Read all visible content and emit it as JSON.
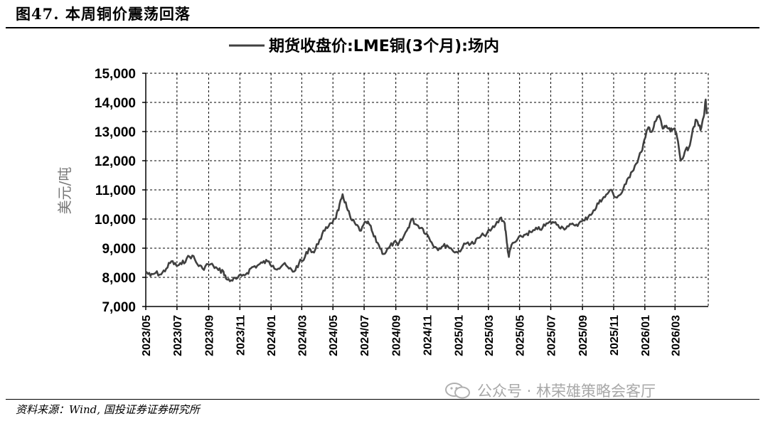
{
  "figure": {
    "title": "图47. 本周铜价震荡回落",
    "source": "资料来源：Wind, 国投证券证券研究所",
    "watermark": "公众号 · 林荣雄策略会客厅"
  },
  "chart_data": {
    "type": "line",
    "title": "",
    "xlabel": "",
    "ylabel": "美元/吨",
    "ylim": [
      7000,
      15000
    ],
    "yticks": [
      "7,000",
      "8,000",
      "9,000",
      "10,000",
      "11,000",
      "12,000",
      "13,000",
      "14,000",
      "15,000"
    ],
    "xticks": [
      "2023/05",
      "2023/07",
      "2023/09",
      "2023/11",
      "2024/01",
      "2024/03",
      "2024/05",
      "2024/07",
      "2024/09",
      "2024/11",
      "2025/01",
      "2025/03",
      "2025/05",
      "2025/07",
      "2025/09",
      "2025/11",
      "2026/01",
      "2026/03"
    ],
    "xlim": [
      "2023-05-01",
      "2026-05-05"
    ],
    "grid": true,
    "legend": "top-center",
    "line_color": "#404040",
    "series": [
      {
        "name": "期货收盘价:LME铜(3个月):场内",
        "points": [
          [
            "2023-05-01",
            8200
          ],
          [
            "2023-05-10",
            8050
          ],
          [
            "2023-05-20",
            8150
          ],
          [
            "2023-05-31",
            8100
          ],
          [
            "2023-06-10",
            8300
          ],
          [
            "2023-06-20",
            8550
          ],
          [
            "2023-06-30",
            8400
          ],
          [
            "2023-07-10",
            8450
          ],
          [
            "2023-07-20",
            8650
          ],
          [
            "2023-07-31",
            8750
          ],
          [
            "2023-08-10",
            8450
          ],
          [
            "2023-08-20",
            8300
          ],
          [
            "2023-08-31",
            8450
          ],
          [
            "2023-09-10",
            8400
          ],
          [
            "2023-09-20",
            8250
          ],
          [
            "2023-09-30",
            8200
          ],
          [
            "2023-10-05",
            7950
          ],
          [
            "2023-10-15",
            7900
          ],
          [
            "2023-10-25",
            7950
          ],
          [
            "2023-11-05",
            8050
          ],
          [
            "2023-11-15",
            8150
          ],
          [
            "2023-11-25",
            8350
          ],
          [
            "2023-12-05",
            8400
          ],
          [
            "2023-12-15",
            8500
          ],
          [
            "2023-12-25",
            8550
          ],
          [
            "2024-01-05",
            8400
          ],
          [
            "2024-01-15",
            8300
          ],
          [
            "2024-01-25",
            8450
          ],
          [
            "2024-02-05",
            8300
          ],
          [
            "2024-02-15",
            8200
          ],
          [
            "2024-02-25",
            8500
          ],
          [
            "2024-03-05",
            8600
          ],
          [
            "2024-03-15",
            9000
          ],
          [
            "2024-03-25",
            8850
          ],
          [
            "2024-04-05",
            9300
          ],
          [
            "2024-04-15",
            9600
          ],
          [
            "2024-04-25",
            9850
          ],
          [
            "2024-05-05",
            10000
          ],
          [
            "2024-05-12",
            10300
          ],
          [
            "2024-05-20",
            10850
          ],
          [
            "2024-05-28",
            10400
          ],
          [
            "2024-06-05",
            10000
          ],
          [
            "2024-06-15",
            9800
          ],
          [
            "2024-06-25",
            9600
          ],
          [
            "2024-07-05",
            9900
          ],
          [
            "2024-07-12",
            9800
          ],
          [
            "2024-07-20",
            9400
          ],
          [
            "2024-07-30",
            9100
          ],
          [
            "2024-08-08",
            8800
          ],
          [
            "2024-08-18",
            9000
          ],
          [
            "2024-08-28",
            9200
          ],
          [
            "2024-09-05",
            9100
          ],
          [
            "2024-09-15",
            9350
          ],
          [
            "2024-09-25",
            9700
          ],
          [
            "2024-10-02",
            10000
          ],
          [
            "2024-10-12",
            9800
          ],
          [
            "2024-10-22",
            9700
          ],
          [
            "2024-10-31",
            9500
          ],
          [
            "2024-11-10",
            9200
          ],
          [
            "2024-11-20",
            9000
          ],
          [
            "2024-11-30",
            9050
          ],
          [
            "2024-12-10",
            9100
          ],
          [
            "2024-12-20",
            8950
          ],
          [
            "2024-12-31",
            8850
          ],
          [
            "2025-01-10",
            9050
          ],
          [
            "2025-01-20",
            9200
          ],
          [
            "2025-01-31",
            9150
          ],
          [
            "2025-02-10",
            9350
          ],
          [
            "2025-02-20",
            9450
          ],
          [
            "2025-03-05",
            9600
          ],
          [
            "2025-03-15",
            9800
          ],
          [
            "2025-03-26",
            10050
          ],
          [
            "2025-04-02",
            9850
          ],
          [
            "2025-04-06",
            9200
          ],
          [
            "2025-04-10",
            8700
          ],
          [
            "2025-04-15",
            9100
          ],
          [
            "2025-04-25",
            9250
          ],
          [
            "2025-05-05",
            9400
          ],
          [
            "2025-05-15",
            9500
          ],
          [
            "2025-05-25",
            9550
          ],
          [
            "2025-06-05",
            9650
          ],
          [
            "2025-06-15",
            9700
          ],
          [
            "2025-06-25",
            9850
          ],
          [
            "2025-07-05",
            9900
          ],
          [
            "2025-07-15",
            9800
          ],
          [
            "2025-07-25",
            9700
          ],
          [
            "2025-08-05",
            9750
          ],
          [
            "2025-08-15",
            9800
          ],
          [
            "2025-08-25",
            9850
          ],
          [
            "2025-09-05",
            9950
          ],
          [
            "2025-09-15",
            10150
          ],
          [
            "2025-09-25",
            10300
          ],
          [
            "2025-10-05",
            10650
          ],
          [
            "2025-10-15",
            10750
          ],
          [
            "2025-10-25",
            11000
          ],
          [
            "2025-11-05",
            10750
          ],
          [
            "2025-11-15",
            10850
          ],
          [
            "2025-11-25",
            11200
          ],
          [
            "2025-12-05",
            11600
          ],
          [
            "2025-12-15",
            11900
          ],
          [
            "2025-12-25",
            12300
          ],
          [
            "2026-01-02",
            12800
          ],
          [
            "2026-01-08",
            13150
          ],
          [
            "2026-01-15",
            13000
          ],
          [
            "2026-01-22",
            13350
          ],
          [
            "2026-01-29",
            13550
          ],
          [
            "2026-02-05",
            13100
          ],
          [
            "2026-02-12",
            13200
          ],
          [
            "2026-02-20",
            13000
          ],
          [
            "2026-02-27",
            13100
          ],
          [
            "2026-03-05",
            12800
          ],
          [
            "2026-03-12",
            12000
          ],
          [
            "2026-03-20",
            12300
          ],
          [
            "2026-03-28",
            12450
          ],
          [
            "2026-04-05",
            13100
          ],
          [
            "2026-04-12",
            13400
          ],
          [
            "2026-04-20",
            13050
          ],
          [
            "2026-04-26",
            13500
          ],
          [
            "2026-04-30",
            14100
          ],
          [
            "2026-05-02",
            13600
          ]
        ]
      }
    ]
  }
}
